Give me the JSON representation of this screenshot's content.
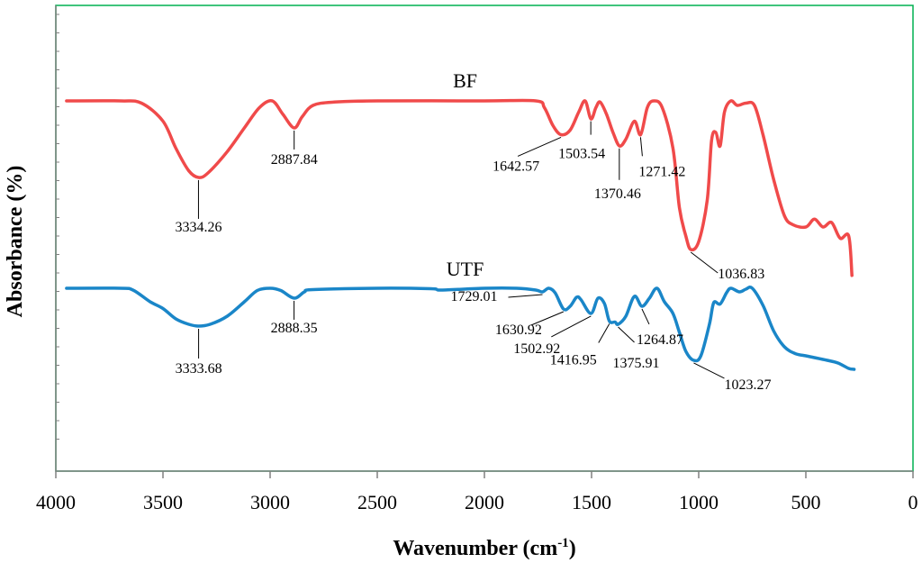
{
  "chart_data": {
    "type": "line",
    "xlabel": "Wavenumber (cm",
    "xlabel_sup": "-1",
    "xlabel_end": ")",
    "ylabel": "Absorbance (%)",
    "xlim": [
      4000,
      0
    ],
    "x_ticks": [
      4000,
      3500,
      3000,
      2500,
      2000,
      1500,
      1000,
      500,
      0
    ],
    "x_tick_labels": [
      "4000",
      "3500",
      "3000",
      "2500",
      "2000",
      "1500",
      "1000",
      "500",
      "0"
    ],
    "grid": false,
    "legend": "none",
    "frame_color": "#00b050",
    "series": [
      {
        "name": "BF",
        "color": "#f04a4a",
        "label_anchor_x": 2090,
        "points": [
          [
            3950,
            0
          ],
          [
            3700,
            0
          ],
          [
            3600,
            0.02
          ],
          [
            3500,
            0.18
          ],
          [
            3440,
            0.42
          ],
          [
            3380,
            0.62
          ],
          [
            3334,
            0.68
          ],
          [
            3290,
            0.64
          ],
          [
            3200,
            0.45
          ],
          [
            3120,
            0.24
          ],
          [
            3050,
            0.06
          ],
          [
            2990,
            0.0
          ],
          [
            2940,
            0.12
          ],
          [
            2888,
            0.24
          ],
          [
            2850,
            0.14
          ],
          [
            2800,
            0.04
          ],
          [
            2700,
            0.01
          ],
          [
            2500,
            0.0
          ],
          [
            2000,
            0.0
          ],
          [
            1760,
            0.0
          ],
          [
            1720,
            0.06
          ],
          [
            1680,
            0.22
          ],
          [
            1643,
            0.3
          ],
          [
            1600,
            0.26
          ],
          [
            1560,
            0.1
          ],
          [
            1530,
            0.0
          ],
          [
            1503,
            0.16
          ],
          [
            1480,
            0.06
          ],
          [
            1460,
            0.01
          ],
          [
            1430,
            0.12
          ],
          [
            1400,
            0.28
          ],
          [
            1370,
            0.4
          ],
          [
            1340,
            0.34
          ],
          [
            1300,
            0.18
          ],
          [
            1271,
            0.3
          ],
          [
            1240,
            0.06
          ],
          [
            1210,
            0.0
          ],
          [
            1170,
            0.06
          ],
          [
            1120,
            0.42
          ],
          [
            1090,
            0.95
          ],
          [
            1060,
            1.2
          ],
          [
            1037,
            1.32
          ],
          [
            1000,
            1.25
          ],
          [
            960,
            0.88
          ],
          [
            940,
            0.35
          ],
          [
            920,
            0.28
          ],
          [
            900,
            0.4
          ],
          [
            880,
            0.1
          ],
          [
            850,
            0.0
          ],
          [
            820,
            0.04
          ],
          [
            780,
            0.02
          ],
          [
            740,
            0.04
          ],
          [
            700,
            0.3
          ],
          [
            650,
            0.7
          ],
          [
            600,
            1.02
          ],
          [
            560,
            1.1
          ],
          [
            500,
            1.12
          ],
          [
            460,
            1.05
          ],
          [
            420,
            1.12
          ],
          [
            380,
            1.08
          ],
          [
            340,
            1.22
          ],
          [
            300,
            1.2
          ],
          [
            285,
            1.55
          ]
        ],
        "annotations": [
          {
            "label": "3334.26",
            "x": 3334.26
          },
          {
            "label": "2887.84",
            "x": 2887.84
          },
          {
            "label": "1642.57",
            "x": 1642.57
          },
          {
            "label": "1503.54",
            "x": 1503.54
          },
          {
            "label": "1370.46",
            "x": 1370.46
          },
          {
            "label": "1271.42",
            "x": 1271.42
          },
          {
            "label": "1036.83",
            "x": 1036.83
          }
        ]
      },
      {
        "name": "UTF",
        "color": "#1a86c8",
        "label_anchor_x": 2090,
        "points": [
          [
            3950,
            0
          ],
          [
            3700,
            0
          ],
          [
            3640,
            0.04
          ],
          [
            3560,
            0.3
          ],
          [
            3500,
            0.45
          ],
          [
            3440,
            0.68
          ],
          [
            3380,
            0.8
          ],
          [
            3334,
            0.84
          ],
          [
            3280,
            0.8
          ],
          [
            3200,
            0.62
          ],
          [
            3120,
            0.3
          ],
          [
            3060,
            0.05
          ],
          [
            3000,
            0.0
          ],
          [
            2950,
            0.05
          ],
          [
            2888,
            0.22
          ],
          [
            2840,
            0.08
          ],
          [
            2800,
            0.03
          ],
          [
            2500,
            0.0
          ],
          [
            2250,
            0.01
          ],
          [
            2200,
            0.04
          ],
          [
            2000,
            0.0
          ],
          [
            1850,
            0.0
          ],
          [
            1760,
            0.04
          ],
          [
            1729,
            0.08
          ],
          [
            1700,
            0.0
          ],
          [
            1670,
            0.1
          ],
          [
            1631,
            0.46
          ],
          [
            1600,
            0.4
          ],
          [
            1570,
            0.2
          ],
          [
            1550,
            0.25
          ],
          [
            1503,
            0.56
          ],
          [
            1470,
            0.22
          ],
          [
            1440,
            0.34
          ],
          [
            1417,
            0.73
          ],
          [
            1390,
            0.75
          ],
          [
            1376,
            0.8
          ],
          [
            1340,
            0.62
          ],
          [
            1300,
            0.18
          ],
          [
            1265,
            0.4
          ],
          [
            1230,
            0.22
          ],
          [
            1195,
            0.0
          ],
          [
            1160,
            0.3
          ],
          [
            1120,
            0.56
          ],
          [
            1090,
            0.98
          ],
          [
            1060,
            1.4
          ],
          [
            1023,
            1.6
          ],
          [
            990,
            1.5
          ],
          [
            950,
            0.8
          ],
          [
            930,
            0.32
          ],
          [
            900,
            0.35
          ],
          [
            870,
            0.1
          ],
          [
            850,
            0.0
          ],
          [
            810,
            0.08
          ],
          [
            780,
            0.02
          ],
          [
            750,
            0.0
          ],
          [
            700,
            0.38
          ],
          [
            650,
            0.95
          ],
          [
            600,
            1.3
          ],
          [
            550,
            1.45
          ],
          [
            500,
            1.5
          ],
          [
            450,
            1.55
          ],
          [
            400,
            1.6
          ],
          [
            350,
            1.66
          ],
          [
            300,
            1.78
          ],
          [
            275,
            1.8
          ]
        ],
        "annotations": [
          {
            "label": "3333.68",
            "x": 3333.68
          },
          {
            "label": "2888.35",
            "x": 2888.35
          },
          {
            "label": "1729.01",
            "x": 1729.01
          },
          {
            "label": "1630.92",
            "x": 1630.92
          },
          {
            "label": "1502.92",
            "x": 1502.92
          },
          {
            "label": "1416.95",
            "x": 1416.95
          },
          {
            "label": "1375.91",
            "x": 1375.91
          },
          {
            "label": "1264.87",
            "x": 1264.87
          },
          {
            "label": "1023.27",
            "x": 1023.27
          }
        ]
      }
    ]
  }
}
